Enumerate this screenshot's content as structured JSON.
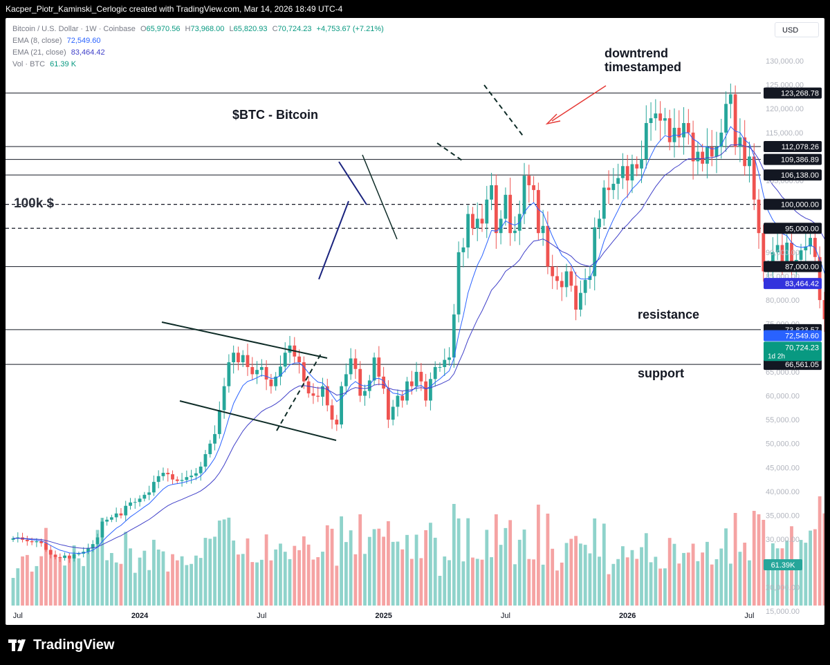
{
  "credit": "Kacper_Piotr_Kaminski_Cerlogic created with TradingView.com, Mar 14, 2026 18:49 UTC-4",
  "legend": {
    "symbol": "Bitcoin / U.S. Dollar · 1W · Coinbase",
    "o_label": "O",
    "o": "65,970.56",
    "h_label": "H",
    "h": "73,968.00",
    "l_label": "L",
    "l": "65,820.93",
    "c_label": "C",
    "c": "70,724.23",
    "chg": "+4,753.67 (+7.21%)",
    "ema8_label": "EMA (8, close)",
    "ema8": "72,549.60",
    "ema21_label": "EMA (21, close)",
    "ema21": "83,464.42",
    "vol_label": "Vol · BTC",
    "vol": "61.39 K"
  },
  "currency": "USD",
  "brand": "TradingView",
  "annotations": {
    "title": "$BTC - Bitcoin",
    "hundredk": "100k $",
    "downtrend_1": "downtrend",
    "downtrend_2": "timestamped",
    "resistance": "resistance",
    "support": "support"
  },
  "colors": {
    "up": "#26a69a",
    "down": "#ef5350",
    "vol_up": "#8fd3cb",
    "vol_down": "#f5a3a3",
    "ema8": "#2962ff",
    "ema21": "#3f3fc8",
    "arrow": "#e53935"
  },
  "chart_data": {
    "type": "candlestick",
    "title": "$BTC - Bitcoin",
    "y_ticks": [
      15000,
      20000,
      25000,
      30000,
      35000,
      40000,
      45000,
      50000,
      55000,
      60000,
      65000,
      70000,
      75000,
      80000,
      85000,
      90000,
      95000,
      100000,
      105000,
      110000,
      115000,
      120000,
      125000,
      130000
    ],
    "y_tick_labels": [
      "15,000.00",
      "20,000.00",
      "25,000.00",
      "30,000.00",
      "35,000.00",
      "40,000.00",
      "45,000.00",
      "50,000.00",
      "55,000.00",
      "60,000.00",
      "65,000.00",
      "70,000.00",
      "75,000.00",
      "80,000.00",
      "85,000.00",
      "90,000.00",
      "95,000.00",
      "100,000.00",
      "105,000.00",
      "110,000.00",
      "115,000.00",
      "120,000.00",
      "125,000.00",
      "130,000.00"
    ],
    "ylim": [
      15000,
      132000
    ],
    "x_labels": [
      {
        "label": "Jul",
        "week": 1
      },
      {
        "label": "2024",
        "week": 27
      },
      {
        "label": "Jul",
        "week": 53
      },
      {
        "label": "2025",
        "week": 79
      },
      {
        "label": "Jul",
        "week": 105
      },
      {
        "label": "2026",
        "week": 131
      },
      {
        "label": "Jul",
        "week": 157
      }
    ],
    "horizontal_levels": [
      {
        "value": 123268.78,
        "label": "123,268.78",
        "style": "solid"
      },
      {
        "value": 112078.26,
        "label": "112,078.26",
        "style": "solid"
      },
      {
        "value": 109386.89,
        "label": "109,386.89",
        "style": "solid"
      },
      {
        "value": 106138.0,
        "label": "106,138.00",
        "style": "solid"
      },
      {
        "value": 100000.0,
        "label": "100,000.00",
        "style": "dashed"
      },
      {
        "value": 95000.0,
        "label": "95,000.00",
        "style": "dashed"
      },
      {
        "value": 87000.0,
        "label": "87,000.00",
        "style": "solid"
      },
      {
        "value": 73823.57,
        "label": "73,823.57",
        "style": "solid"
      },
      {
        "value": 66561.05,
        "label": "66,561.05",
        "style": "solid"
      }
    ],
    "price_tags": [
      {
        "value": 83464.42,
        "label": "83,464.42",
        "kind": "ema21"
      },
      {
        "value": 72549.6,
        "label": "72,549.60",
        "kind": "ema8"
      },
      {
        "value": 70724.23,
        "label": "70,724.23",
        "sub": "1d 2h",
        "kind": "last"
      }
    ],
    "volume_tag": "61.39K",
    "closes": [
      30200,
      30400,
      29900,
      29600,
      29400,
      29600,
      29200,
      27800,
      26800,
      26300,
      26100,
      26600,
      26000,
      26900,
      27000,
      27400,
      28200,
      29000,
      30400,
      33700,
      34100,
      34600,
      35400,
      35000,
      37000,
      37700,
      37800,
      38500,
      39300,
      39800,
      42000,
      43200,
      43900,
      43600,
      42500,
      42200,
      42400,
      43000,
      43300,
      43800,
      45200,
      47800,
      50000,
      52000,
      57000,
      62000,
      67000,
      69000,
      67000,
      68500,
      66000,
      64500,
      65400,
      66000,
      63400,
      62000,
      64000,
      66100,
      69000,
      70500,
      68200,
      67000,
      63000,
      60500,
      60000,
      59800,
      62000,
      58000,
      55000,
      54000,
      62000,
      64500,
      67800,
      65600,
      60000,
      61000,
      63200,
      68000,
      64000,
      61500,
      55000,
      57700,
      60000,
      59000,
      63000,
      62000,
      65000,
      63000,
      59000,
      63500,
      66000,
      66000,
      67500,
      68000,
      77000,
      90000,
      91000,
      98000,
      95000,
      97000,
      96000,
      101000,
      104000,
      94000,
      97000,
      102000,
      94000,
      94500,
      98000,
      106000,
      104000,
      103000,
      94000,
      95500,
      87000,
      85000,
      84000,
      82700,
      86000,
      83000,
      78000,
      81500,
      84200,
      85000,
      95200,
      97000,
      103500,
      103000,
      104300,
      105500,
      108000,
      105000,
      108400,
      107500,
      109500,
      117000,
      118000,
      119000,
      117500,
      118000,
      113000,
      116000,
      114000,
      117000,
      115000,
      109000,
      111000,
      108500,
      112000,
      110000,
      112000,
      115000,
      121000,
      123000,
      112000,
      114000,
      108000,
      110000,
      101000,
      94000,
      86000,
      87000,
      90000,
      91500,
      88000,
      92000,
      87000,
      88400,
      90400,
      91200,
      93000,
      89000,
      80000,
      76000,
      69000,
      68000,
      67000,
      65970,
      70724
    ],
    "ema8_final": 72549.6,
    "ema21_final": 83464.42
  }
}
